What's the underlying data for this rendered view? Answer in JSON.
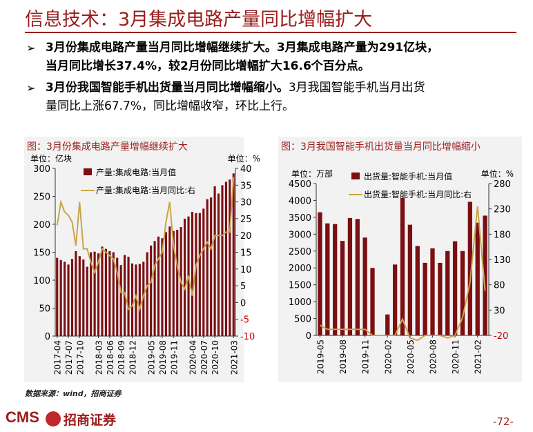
{
  "title": "信息技术：3月集成电路产量同比增幅扩大",
  "bullets": [
    {
      "mark": "➢",
      "line1a": "3月份集成电路产量当月同比增幅继续扩大。3月集成电路产量为",
      "line1b": "291",
      "line1c": "亿块，",
      "line2a": "当月同比增长",
      "line2b": "37.4%",
      "line2c": "，较2月份同比增幅扩大",
      "line2d": "16.6",
      "line2e": "个百分点。"
    },
    {
      "mark": "➢",
      "line1a": "3月份我国智能手机出货量当月同比增幅缩小。",
      "line1b": "3月我国智能手机当月出货",
      "line2a": "量同比上涨67.7%，同比增幅收窄，环比上行。"
    }
  ],
  "source": "数据来源：wind，招商证券",
  "logo": {
    "text": "CMS",
    "cn": "招商证券"
  },
  "page_number": "-72-",
  "colors": {
    "bar": "#7b0f12",
    "line": "#c8a547",
    "accent": "#9b1c1c",
    "panel_bg": "#f2f2f2"
  },
  "chart_data": [
    {
      "type": "bar",
      "title": "图：3月份集成电路产量增幅继续扩大",
      "left_unit": "单位：亿块",
      "right_unit": "单位：%",
      "x": [
        "2017-04",
        "2017-05",
        "2017-06",
        "2017-07",
        "2017-08",
        "2017-09",
        "2017-10",
        "2017-11",
        "2017-12",
        "2018-01",
        "2018-02",
        "2018-03",
        "2018-04",
        "2018-05",
        "2018-06",
        "2018-07",
        "2018-08",
        "2018-09",
        "2018-10",
        "2018-11",
        "2018-12",
        "2019-01",
        "2019-02",
        "2019-03",
        "2019-04",
        "2019-05",
        "2019-06",
        "2019-07",
        "2019-08",
        "2019-09",
        "2019-10",
        "2019-11",
        "2019-12",
        "2020-01",
        "2020-02",
        "2020-03",
        "2020-04",
        "2020-05",
        "2020-06",
        "2020-07",
        "2020-08",
        "2020-09",
        "2020-10",
        "2020-11",
        "2020-12",
        "2021-01",
        "2021-02",
        "2021-03"
      ],
      "x_tick_labels": [
        "2017-04",
        "2017-07",
        "2017-10",
        "2018-03",
        "2018-06",
        "2018-09",
        "2018-12",
        "2019-05",
        "2019-08",
        "2019-11",
        "2020-04",
        "2020-07",
        "2020-10",
        "2021-03"
      ],
      "series": [
        {
          "name": "产量:集成电路:当月值",
          "axis": "left",
          "type": "bar",
          "values": [
            140,
            136,
            133,
            128,
            138,
            152,
            143,
            137,
            124,
            150,
            151,
            148,
            160,
            156,
            152,
            150,
            140,
            127,
            145,
            142,
            130,
            128,
            129,
            133,
            150,
            162,
            170,
            178,
            175,
            186,
            196,
            188,
            190,
            195,
            210,
            214,
            222,
            220,
            220,
            228,
            245,
            248,
            268,
            255,
            270,
            276,
            280,
            291
          ]
        },
        {
          "name": "产量:集成电路:当月同比:右",
          "axis": "right",
          "type": "line",
          "values": [
            23,
            30,
            27,
            26,
            24,
            17,
            30,
            16,
            16,
            12,
            9,
            12,
            16,
            15,
            14,
            13,
            9,
            3,
            3,
            -2,
            -1,
            2,
            -2,
            2,
            5,
            6,
            11,
            13,
            15,
            24,
            30,
            17,
            11,
            6,
            4,
            8,
            2,
            11,
            14,
            16,
            18,
            16,
            20,
            20,
            20,
            21,
            21,
            37.4
          ]
        }
      ],
      "left_ylim": [
        0,
        300
      ],
      "left_ticks": [
        0,
        50,
        100,
        150,
        200,
        250,
        300
      ],
      "right_ylim": [
        -10,
        40
      ],
      "right_ticks": [
        -10,
        -5,
        0,
        5,
        10,
        15,
        20,
        25,
        30,
        35,
        40
      ],
      "legend": "top"
    },
    {
      "type": "bar",
      "title": "图：3月我国智能手机出货量当月同比增幅缩小",
      "left_unit": "单位：万部",
      "right_unit": "单位：%",
      "x": [
        "2019-05",
        "2019-06",
        "2019-07",
        "2019-08",
        "2019-09",
        "2019-10",
        "2019-11",
        "2019-12",
        "2020-01",
        "2020-02",
        "2020-03",
        "2020-04",
        "2020-05",
        "2020-06",
        "2020-07",
        "2020-08",
        "2020-09",
        "2020-10",
        "2020-11",
        "2020-12",
        "2021-01",
        "2021-02",
        "2021-03"
      ],
      "x_tick_labels": [
        "2019-05",
        "2019-08",
        "2019-11",
        "2020-02",
        "2020-05",
        "2020-08",
        "2020-11",
        "2021-02"
      ],
      "series": [
        {
          "name": "出货量:智能手机:当月值",
          "axis": "left",
          "type": "bar",
          "values": [
            3650,
            3320,
            3300,
            2800,
            3480,
            3450,
            2900,
            2000,
            0,
            620,
            2100,
            4070,
            3280,
            2650,
            2150,
            2580,
            2150,
            2500,
            2790,
            2500,
            3960,
            3340,
            3550
          ]
        },
        {
          "name": "出货量:智能手机:当月同比:右",
          "axis": "right",
          "type": "line",
          "values": [
            0,
            -8,
            -8,
            -8,
            -8,
            -8,
            -8,
            -20,
            -20,
            -20,
            -20,
            12,
            -25,
            -30,
            -20,
            -20,
            -20,
            -25,
            -20,
            15,
            85,
            235,
            68
          ]
        }
      ],
      "left_ylim": [
        0,
        4500
      ],
      "left_ticks": [
        0,
        500,
        1000,
        1500,
        2000,
        2500,
        3000,
        3500,
        4000,
        4500
      ],
      "right_ylim": [
        -20,
        280
      ],
      "right_ticks": [
        -20,
        30,
        80,
        130,
        180,
        230,
        280
      ],
      "legend": "top"
    }
  ]
}
